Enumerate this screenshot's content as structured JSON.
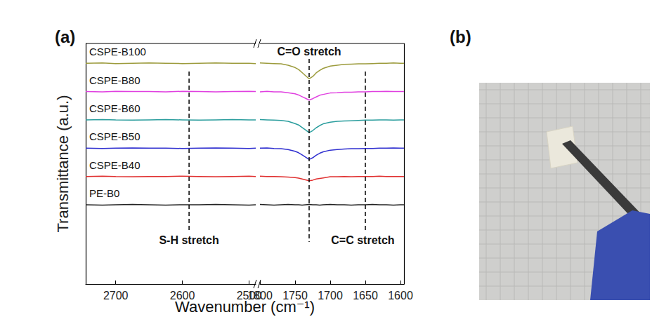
{
  "chart_data": [
    {
      "type": "line",
      "panel_label": "(a)",
      "y_label": "Transmittance (a.u.)",
      "x_label": "Wavenumber (cm⁻¹)",
      "xlim": [
        2745,
        2490
      ],
      "xticks": [
        2700,
        2600,
        2500
      ],
      "ylim": [
        0,
        8.5
      ],
      "tick_labels": "x",
      "x": [
        2745,
        2720,
        2700,
        2675,
        2650,
        2625,
        2600,
        2575,
        2550,
        2525,
        2500,
        2490
      ],
      "series": [
        {
          "name": "CSPE-B100",
          "color": "#9c9b3c",
          "values": [
            7.8,
            7.81,
            7.79,
            7.8,
            7.81,
            7.8,
            7.79,
            7.8,
            7.81,
            7.8,
            7.8,
            7.79
          ]
        },
        {
          "name": "CSPE-B80",
          "color": "#e040e0",
          "values": [
            6.8,
            6.79,
            6.81,
            6.8,
            6.8,
            6.79,
            6.81,
            6.8,
            6.79,
            6.8,
            6.81,
            6.8
          ]
        },
        {
          "name": "CSPE-B60",
          "color": "#2a9d9d",
          "values": [
            5.8,
            5.81,
            5.8,
            5.79,
            5.8,
            5.81,
            5.8,
            5.79,
            5.8,
            5.81,
            5.8,
            5.8
          ]
        },
        {
          "name": "CSPE-B50",
          "color": "#3030d0",
          "values": [
            4.8,
            4.79,
            4.8,
            4.81,
            4.8,
            4.8,
            4.79,
            4.8,
            4.81,
            4.8,
            4.79,
            4.8
          ]
        },
        {
          "name": "CSPE-B40",
          "color": "#e03030",
          "values": [
            3.8,
            3.81,
            3.8,
            3.79,
            3.8,
            3.8,
            3.81,
            3.8,
            3.79,
            3.8,
            3.81,
            3.8
          ]
        },
        {
          "name": "PE-B0",
          "color": "#222222",
          "values": [
            2.8,
            2.79,
            2.8,
            2.81,
            2.8,
            2.79,
            2.8,
            2.8,
            2.81,
            2.8,
            2.79,
            2.8
          ]
        }
      ],
      "annotations": [
        {
          "text": "S-H stretch",
          "x": 2590
        }
      ]
    },
    {
      "type": "line",
      "xlim": [
        1800,
        1595
      ],
      "xticks": [
        1800,
        1750,
        1700,
        1650,
        1600
      ],
      "ylim": [
        0,
        8.5
      ],
      "tick_labels": "x",
      "x": [
        1800,
        1790,
        1780,
        1770,
        1760,
        1750,
        1745,
        1740,
        1735,
        1730,
        1725,
        1720,
        1715,
        1710,
        1700,
        1690,
        1680,
        1670,
        1660,
        1650,
        1640,
        1630,
        1620,
        1610,
        1600,
        1595
      ],
      "series": [
        {
          "color": "#9c9b3c",
          "values": [
            7.81,
            7.8,
            7.79,
            7.78,
            7.73,
            7.65,
            7.58,
            7.47,
            7.36,
            7.25,
            7.33,
            7.46,
            7.55,
            7.62,
            7.7,
            7.73,
            7.76,
            7.77,
            7.78,
            7.78,
            7.79,
            7.8,
            7.8,
            7.81,
            7.8,
            7.8
          ]
        },
        {
          "color": "#e040e0",
          "values": [
            6.79,
            6.81,
            6.79,
            6.79,
            6.76,
            6.72,
            6.68,
            6.62,
            6.56,
            6.5,
            6.55,
            6.61,
            6.67,
            6.7,
            6.75,
            6.76,
            6.78,
            6.78,
            6.79,
            6.79,
            6.8,
            6.8,
            6.81,
            6.8,
            6.8,
            6.8
          ]
        },
        {
          "color": "#2a9d9d",
          "values": [
            5.81,
            5.8,
            5.79,
            5.78,
            5.75,
            5.67,
            5.62,
            5.53,
            5.44,
            5.35,
            5.42,
            5.52,
            5.6,
            5.66,
            5.72,
            5.75,
            5.76,
            5.77,
            5.78,
            5.79,
            5.79,
            5.8,
            5.8,
            5.79,
            5.8,
            5.8
          ]
        },
        {
          "color": "#3030d0",
          "values": [
            4.8,
            4.81,
            4.79,
            4.78,
            4.75,
            4.69,
            4.64,
            4.56,
            4.48,
            4.4,
            4.46,
            4.55,
            4.62,
            4.67,
            4.73,
            4.75,
            4.77,
            4.78,
            4.78,
            4.79,
            4.79,
            4.8,
            4.8,
            4.81,
            4.8,
            4.8
          ]
        },
        {
          "color": "#e03030",
          "values": [
            3.81,
            3.8,
            3.8,
            3.79,
            3.78,
            3.76,
            3.74,
            3.71,
            3.68,
            3.65,
            3.67,
            3.71,
            3.73,
            3.75,
            3.79,
            3.79,
            3.8,
            3.79,
            3.8,
            3.8,
            3.8,
            3.81,
            3.8,
            3.8,
            3.8,
            3.8
          ]
        },
        {
          "color": "#222222",
          "values": [
            2.81,
            2.8,
            2.79,
            2.8,
            2.81,
            2.8,
            2.8,
            2.79,
            2.8,
            2.81,
            2.8,
            2.8,
            2.79,
            2.8,
            2.81,
            2.8,
            2.8,
            2.79,
            2.8,
            2.8,
            2.81,
            2.8,
            2.8,
            2.79,
            2.8,
            2.8
          ]
        }
      ],
      "annotations": [
        {
          "text": "C=O stretch",
          "x": 1730
        },
        {
          "text": "C=C stretch",
          "x": 1650
        }
      ]
    },
    {
      "type": "image",
      "panel_label": "(b)"
    }
  ]
}
